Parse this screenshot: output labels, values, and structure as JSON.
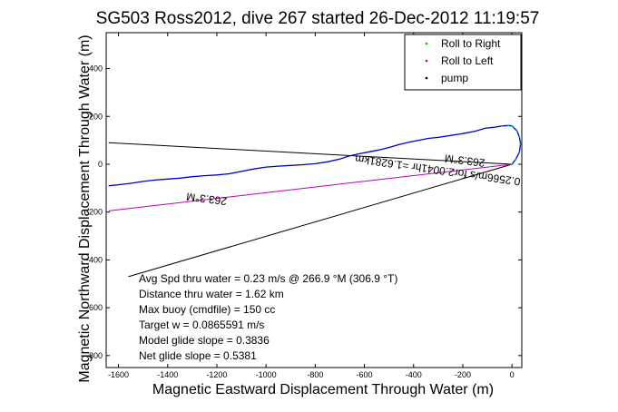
{
  "chart_data": {
    "type": "line",
    "title": "SG503 Ross2012, dive 267 started 26-Dec-2012 11:19:57",
    "xlabel": "Magnetic Eastward Displacement Through Water (m)",
    "ylabel": "Magnetic Northward Displacement Through Water (m)",
    "xlim": [
      -1650,
      40
    ],
    "ylim": [
      -850,
      550
    ],
    "xticks": [
      -1600,
      -1400,
      -1200,
      -1000,
      -800,
      -600,
      -400,
      -200,
      0
    ],
    "yticks": [
      -800,
      -600,
      -400,
      -200,
      0,
      200,
      400
    ],
    "grid": false,
    "legend_position": "top-right",
    "legend": [
      {
        "label": "Roll to Right",
        "color": "#00bb00"
      },
      {
        "label": "Roll to Left",
        "color": "#ff0000"
      },
      {
        "label": "pump",
        "color": "#000000"
      }
    ],
    "series": [
      {
        "color": "#0000cc",
        "x": [
          0,
          15,
          30,
          35,
          30,
          20,
          5,
          0,
          -15,
          -40,
          -70,
          -110,
          -150,
          -200,
          -250,
          -300,
          -340,
          -380,
          -420,
          -460,
          -500,
          -540,
          -580,
          -620,
          -660,
          -700,
          -750,
          -800,
          -850,
          -900,
          -950,
          -1000,
          -1050,
          -1100,
          -1150,
          -1200,
          -1250,
          -1300,
          -1350,
          -1400,
          -1450,
          -1500,
          -1550,
          -1600,
          -1640
        ],
        "y": [
          0,
          20,
          50,
          85,
          115,
          140,
          155,
          160,
          162,
          160,
          155,
          150,
          138,
          128,
          120,
          112,
          108,
          100,
          92,
          82,
          70,
          60,
          52,
          44,
          35,
          22,
          10,
          2,
          -2,
          -5,
          -8,
          -12,
          -20,
          -30,
          -40,
          -45,
          -48,
          -52,
          -58,
          -62,
          -66,
          -72,
          -80,
          -86,
          -90
        ]
      }
    ],
    "lines": [
      {
        "name": "heading line 1",
        "color": "#000000",
        "x": [
          0,
          -1640
        ],
        "y": [
          0,
          90
        ]
      },
      {
        "name": "heading line 2",
        "color": "#000000",
        "x": [
          0,
          -1560
        ],
        "y": [
          0,
          -470
        ]
      },
      {
        "name": "current line",
        "color": "#b0b",
        "x": [
          0,
          -1640
        ],
        "y": [
          0,
          -195
        ]
      }
    ],
    "annotations": [
      {
        "text": "263.3°M",
        "x": -190,
        "y": 30,
        "rotate": 187
      },
      {
        "text": "0.2566m/s for2.0041hr =1.6281km",
        "x": -300,
        "y": -10,
        "rotate": 188
      },
      {
        "text": "263.3°M",
        "x": -1240,
        "y": -130,
        "rotate": 187
      }
    ],
    "stats": [
      "Avg Spd thru water = 0.23 m/s @ 266.9 °M (306.9 °T)",
      "Distance thru water = 1.62 km",
      "Max buoy (cmdfile) = 150 cc",
      "Target w = 0.0865591 m/s",
      "Model glide slope = 0.3836",
      "Net glide slope = 0.5381"
    ]
  }
}
